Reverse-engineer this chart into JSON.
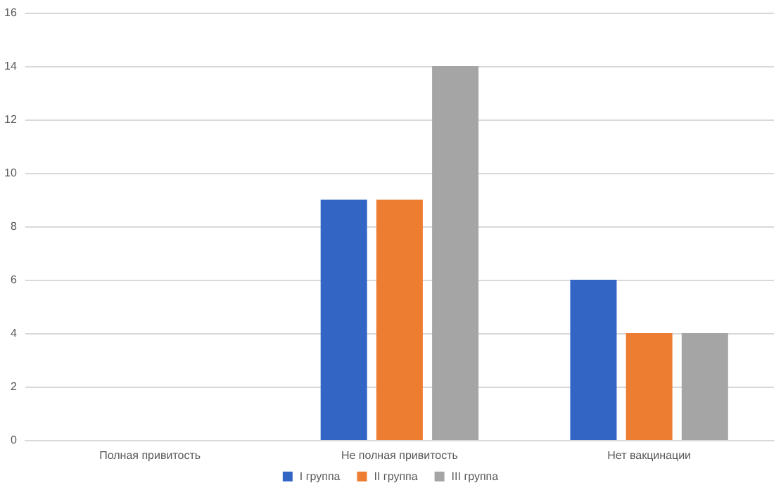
{
  "chart_data": {
    "type": "bar",
    "categories": [
      "Полная привитость",
      "Не полная привитость",
      "Нет вакцинации"
    ],
    "series": [
      {
        "name": "I группа",
        "color": "#3366c4",
        "values": [
          null,
          9,
          6
        ]
      },
      {
        "name": "II группа",
        "color": "#ed7d31",
        "values": [
          null,
          9,
          4
        ]
      },
      {
        "name": "III группа",
        "color": "#a5a5a5",
        "values": [
          null,
          14,
          4
        ]
      }
    ],
    "ylim": [
      0,
      16
    ],
    "yticks": [
      0,
      2,
      4,
      6,
      8,
      10,
      12,
      14,
      16
    ],
    "grid": "y",
    "legend": "bottom"
  }
}
